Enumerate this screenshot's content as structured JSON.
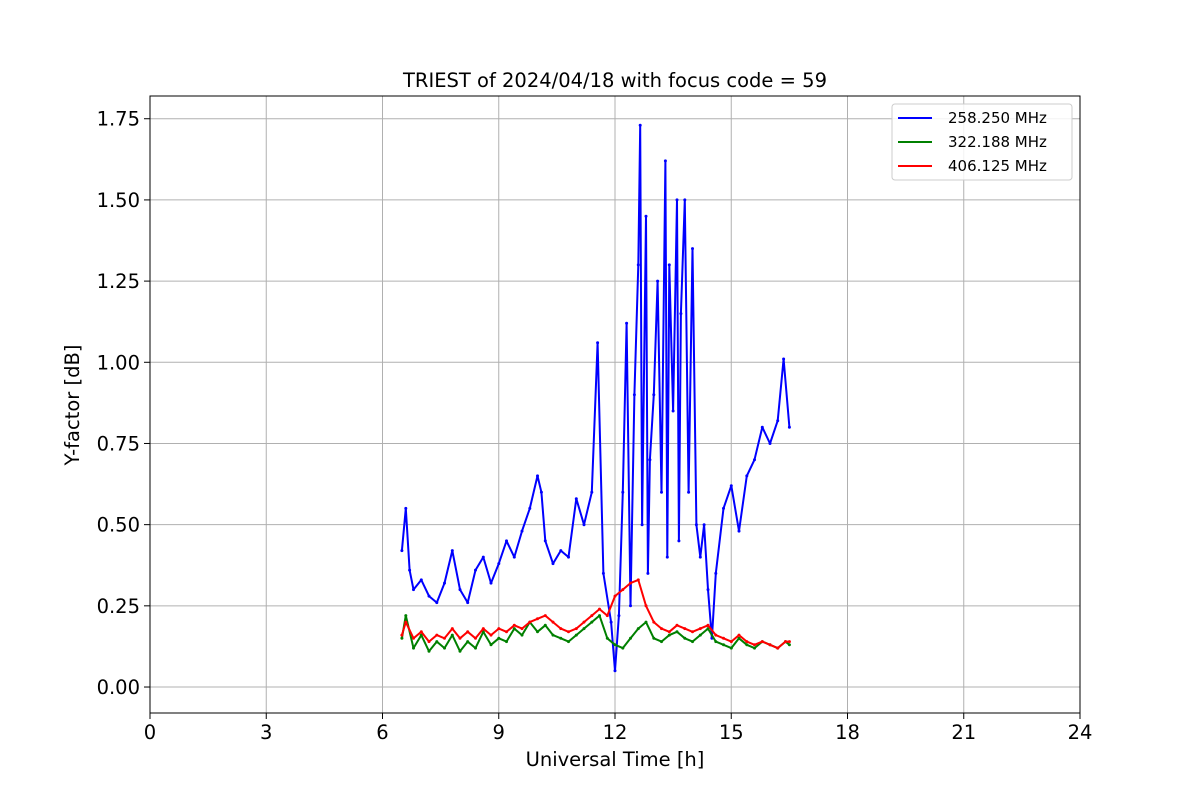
{
  "chart_data": {
    "type": "line",
    "title": "TRIEST of 2024/04/18 with focus code = 59",
    "xlabel": "Universal Time [h]",
    "ylabel": "Y-factor [dB]",
    "xlim": [
      0,
      24
    ],
    "ylim": [
      -0.08,
      1.82
    ],
    "xticks": [
      0,
      3,
      6,
      9,
      12,
      15,
      18,
      21,
      24
    ],
    "yticks": [
      0.0,
      0.25,
      0.5,
      0.75,
      1.0,
      1.25,
      1.5,
      1.75
    ],
    "ytick_labels": [
      "0.00",
      "0.25",
      "0.50",
      "0.75",
      "1.00",
      "1.25",
      "1.50",
      "1.75"
    ],
    "grid": true,
    "legend_position": "top-right",
    "series": [
      {
        "name": "258.250 MHz",
        "color": "#0000ff",
        "x": [
          6.5,
          6.6,
          6.7,
          6.8,
          7.0,
          7.2,
          7.4,
          7.6,
          7.8,
          8.0,
          8.2,
          8.4,
          8.6,
          8.8,
          9.0,
          9.2,
          9.4,
          9.6,
          9.8,
          10.0,
          10.1,
          10.2,
          10.4,
          10.6,
          10.8,
          11.0,
          11.2,
          11.4,
          11.55,
          11.7,
          11.9,
          12.0,
          12.1,
          12.2,
          12.3,
          12.4,
          12.5,
          12.6,
          12.65,
          12.7,
          12.8,
          12.85,
          12.9,
          13.0,
          13.1,
          13.2,
          13.3,
          13.35,
          13.4,
          13.5,
          13.6,
          13.65,
          13.7,
          13.8,
          13.9,
          14.0,
          14.1,
          14.2,
          14.3,
          14.4,
          14.5,
          14.6,
          14.8,
          15.0,
          15.2,
          15.4,
          15.6,
          15.8,
          16.0,
          16.2,
          16.35,
          16.5
        ],
        "values": [
          0.42,
          0.55,
          0.36,
          0.3,
          0.33,
          0.28,
          0.26,
          0.32,
          0.42,
          0.3,
          0.26,
          0.36,
          0.4,
          0.32,
          0.38,
          0.45,
          0.4,
          0.48,
          0.55,
          0.65,
          0.6,
          0.45,
          0.38,
          0.42,
          0.4,
          0.58,
          0.5,
          0.6,
          1.06,
          0.35,
          0.2,
          0.05,
          0.22,
          0.6,
          1.12,
          0.25,
          0.9,
          1.3,
          1.73,
          0.5,
          1.45,
          0.35,
          0.7,
          0.9,
          1.25,
          0.6,
          1.62,
          0.4,
          1.3,
          0.85,
          1.5,
          0.45,
          1.15,
          1.5,
          0.6,
          1.35,
          0.5,
          0.4,
          0.5,
          0.3,
          0.15,
          0.35,
          0.55,
          0.62,
          0.48,
          0.65,
          0.7,
          0.8,
          0.75,
          0.82,
          1.01,
          0.8
        ]
      },
      {
        "name": "322.188 MHz",
        "color": "#008000",
        "x": [
          6.5,
          6.6,
          6.8,
          7.0,
          7.2,
          7.4,
          7.6,
          7.8,
          8.0,
          8.2,
          8.4,
          8.6,
          8.8,
          9.0,
          9.2,
          9.4,
          9.6,
          9.8,
          10.0,
          10.2,
          10.4,
          10.6,
          10.8,
          11.0,
          11.2,
          11.4,
          11.6,
          11.8,
          12.0,
          12.2,
          12.4,
          12.6,
          12.8,
          13.0,
          13.2,
          13.4,
          13.6,
          13.8,
          14.0,
          14.2,
          14.4,
          14.6,
          14.8,
          15.0,
          15.2,
          15.4,
          15.6,
          15.8,
          16.0,
          16.2,
          16.4,
          16.5
        ],
        "values": [
          0.15,
          0.22,
          0.12,
          0.16,
          0.11,
          0.14,
          0.12,
          0.16,
          0.11,
          0.14,
          0.12,
          0.17,
          0.13,
          0.15,
          0.14,
          0.18,
          0.16,
          0.2,
          0.17,
          0.19,
          0.16,
          0.15,
          0.14,
          0.16,
          0.18,
          0.2,
          0.22,
          0.15,
          0.13,
          0.12,
          0.15,
          0.18,
          0.2,
          0.15,
          0.14,
          0.16,
          0.17,
          0.15,
          0.14,
          0.16,
          0.18,
          0.14,
          0.13,
          0.12,
          0.15,
          0.13,
          0.12,
          0.14,
          0.13,
          0.12,
          0.14,
          0.13
        ]
      },
      {
        "name": "406.125 MHz",
        "color": "#ff0000",
        "x": [
          6.5,
          6.6,
          6.8,
          7.0,
          7.2,
          7.4,
          7.6,
          7.8,
          8.0,
          8.2,
          8.4,
          8.6,
          8.8,
          9.0,
          9.2,
          9.4,
          9.6,
          9.8,
          10.0,
          10.2,
          10.4,
          10.6,
          10.8,
          11.0,
          11.2,
          11.4,
          11.6,
          11.8,
          12.0,
          12.2,
          12.4,
          12.6,
          12.8,
          13.0,
          13.2,
          13.4,
          13.6,
          13.8,
          14.0,
          14.2,
          14.4,
          14.6,
          14.8,
          15.0,
          15.2,
          15.4,
          15.6,
          15.8,
          16.0,
          16.2,
          16.4,
          16.5
        ],
        "values": [
          0.16,
          0.2,
          0.15,
          0.17,
          0.14,
          0.16,
          0.15,
          0.18,
          0.15,
          0.17,
          0.15,
          0.18,
          0.16,
          0.18,
          0.17,
          0.19,
          0.18,
          0.2,
          0.21,
          0.22,
          0.2,
          0.18,
          0.17,
          0.18,
          0.2,
          0.22,
          0.24,
          0.22,
          0.28,
          0.3,
          0.32,
          0.33,
          0.25,
          0.2,
          0.18,
          0.17,
          0.19,
          0.18,
          0.17,
          0.18,
          0.19,
          0.16,
          0.15,
          0.14,
          0.16,
          0.14,
          0.13,
          0.14,
          0.13,
          0.12,
          0.14,
          0.14
        ]
      }
    ]
  }
}
